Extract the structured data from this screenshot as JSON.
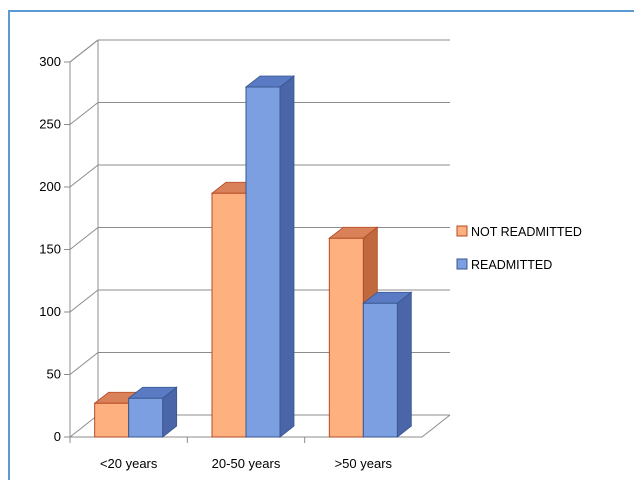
{
  "chart_data": {
    "type": "bar",
    "title": "",
    "xlabel": "",
    "ylabel": "",
    "categories": [
      "<20 years",
      "20-50 years",
      ">50 years"
    ],
    "series": [
      {
        "name": "NOT READMITTED",
        "values": [
          27,
          195,
          159
        ]
      },
      {
        "name": "READMITTED",
        "values": [
          31,
          280,
          107
        ]
      }
    ],
    "ylim": [
      0,
      300
    ],
    "yticks": [
      "0",
      "50",
      "100",
      "150",
      "200",
      "250",
      "300"
    ],
    "grid": true,
    "legend_position": "right",
    "style": "3d-clustered-column"
  },
  "colors": {
    "series_front": [
      "#ffb07f",
      "#7b9fe0"
    ],
    "series_top": [
      "#d9825a",
      "#5a7bc4"
    ],
    "series_side": [
      "#c0693f",
      "#4a66a8"
    ],
    "series_stroke": [
      "#b34b24",
      "#3a5790"
    ],
    "grid": "#8c8c8c",
    "axis_text": "#000000",
    "frame": "#5b9bd5"
  }
}
